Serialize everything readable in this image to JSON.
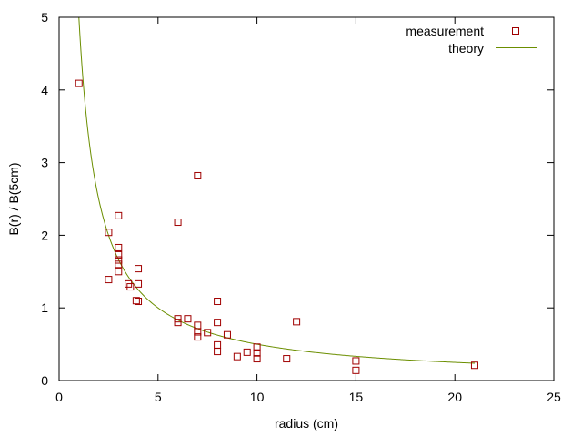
{
  "chart_data": {
    "type": "scatter",
    "xlabel": "radius (cm)",
    "ylabel": "B(r) / B(5cm)",
    "xlim": [
      0,
      25
    ],
    "ylim": [
      0,
      5
    ],
    "xticks": [
      0,
      5,
      10,
      15,
      20,
      25
    ],
    "yticks": [
      0,
      1,
      2,
      3,
      4,
      5
    ],
    "grid": false,
    "legend": "top-right",
    "series": [
      {
        "name": "measurement",
        "style": "hollow-square",
        "color": "#a00000",
        "points": [
          [
            1.0,
            4.09
          ],
          [
            2.5,
            2.04
          ],
          [
            2.5,
            1.39
          ],
          [
            3.0,
            2.27
          ],
          [
            3.0,
            1.83
          ],
          [
            3.0,
            1.73
          ],
          [
            3.0,
            1.66
          ],
          [
            3.0,
            1.6
          ],
          [
            3.0,
            1.5
          ],
          [
            3.5,
            1.33
          ],
          [
            3.6,
            1.29
          ],
          [
            3.9,
            1.1
          ],
          [
            4.0,
            1.09
          ],
          [
            4.0,
            1.54
          ],
          [
            4.0,
            1.33
          ],
          [
            6.0,
            2.18
          ],
          [
            6.0,
            0.85
          ],
          [
            6.0,
            0.8
          ],
          [
            6.5,
            0.85
          ],
          [
            7.0,
            2.82
          ],
          [
            7.0,
            0.76
          ],
          [
            7.0,
            0.67
          ],
          [
            7.0,
            0.6
          ],
          [
            7.5,
            0.66
          ],
          [
            8.0,
            1.09
          ],
          [
            8.0,
            0.8
          ],
          [
            8.0,
            0.49
          ],
          [
            8.0,
            0.4
          ],
          [
            8.5,
            0.63
          ],
          [
            9.0,
            0.33
          ],
          [
            9.5,
            0.39
          ],
          [
            10.0,
            0.46
          ],
          [
            10.0,
            0.38
          ],
          [
            10.0,
            0.3
          ],
          [
            11.5,
            0.3
          ],
          [
            12.0,
            0.81
          ],
          [
            15.0,
            0.27
          ],
          [
            15.0,
            0.14
          ],
          [
            21.0,
            0.21
          ]
        ]
      },
      {
        "name": "theory",
        "style": "line",
        "color": "#6b8e00",
        "function": "B(r)/B(5cm) = 5/r",
        "domain": [
          0.9,
          21.0
        ]
      }
    ]
  }
}
